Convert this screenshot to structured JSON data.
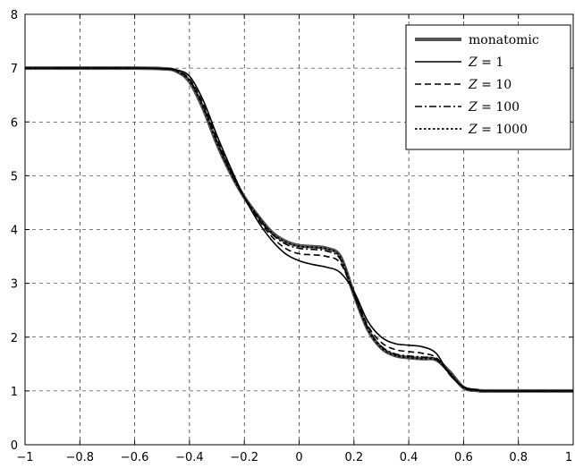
{
  "chart_data": {
    "type": "line",
    "title": "",
    "xlabel": "",
    "ylabel": "",
    "xlim": [
      -1,
      1
    ],
    "ylim": [
      0,
      8
    ],
    "xticks": [
      "−1",
      "−0.8",
      "−0.6",
      "−0.4",
      "−0.2",
      "0",
      "0.2",
      "0.4",
      "0.6",
      "0.8",
      "1"
    ],
    "yticks": [
      "0",
      "1",
      "2",
      "3",
      "4",
      "5",
      "6",
      "7",
      "8"
    ],
    "grid": true,
    "legend_position": "top-right",
    "series": [
      {
        "name": "monatomic",
        "color": "#555555",
        "style": "solid-thick",
        "points": [
          [
            -1,
            7
          ],
          [
            -0.6,
            7
          ],
          [
            -0.5,
            6.99
          ],
          [
            -0.45,
            6.95
          ],
          [
            -0.4,
            6.75
          ],
          [
            -0.35,
            6.25
          ],
          [
            -0.3,
            5.6
          ],
          [
            -0.25,
            5.05
          ],
          [
            -0.2,
            4.6
          ],
          [
            -0.15,
            4.25
          ],
          [
            -0.1,
            3.95
          ],
          [
            -0.05,
            3.78
          ],
          [
            0,
            3.7
          ],
          [
            0.05,
            3.68
          ],
          [
            0.1,
            3.65
          ],
          [
            0.15,
            3.5
          ],
          [
            0.2,
            2.8
          ],
          [
            0.25,
            2.15
          ],
          [
            0.3,
            1.8
          ],
          [
            0.35,
            1.66
          ],
          [
            0.4,
            1.62
          ],
          [
            0.45,
            1.6
          ],
          [
            0.5,
            1.58
          ],
          [
            0.55,
            1.35
          ],
          [
            0.6,
            1.06
          ],
          [
            0.65,
            1.01
          ],
          [
            0.7,
            1
          ],
          [
            1,
            1
          ]
        ]
      },
      {
        "name": "Z = 1",
        "label_math": "Z",
        "label_tail": " = 1",
        "color": "#000000",
        "style": "solid",
        "points": [
          [
            -1,
            7
          ],
          [
            -0.6,
            7
          ],
          [
            -0.5,
            6.99
          ],
          [
            -0.45,
            6.97
          ],
          [
            -0.4,
            6.85
          ],
          [
            -0.35,
            6.4
          ],
          [
            -0.3,
            5.75
          ],
          [
            -0.25,
            5.15
          ],
          [
            -0.2,
            4.6
          ],
          [
            -0.15,
            4.15
          ],
          [
            -0.1,
            3.8
          ],
          [
            -0.05,
            3.55
          ],
          [
            0,
            3.42
          ],
          [
            0.05,
            3.35
          ],
          [
            0.1,
            3.3
          ],
          [
            0.15,
            3.2
          ],
          [
            0.2,
            2.85
          ],
          [
            0.25,
            2.3
          ],
          [
            0.3,
            2.0
          ],
          [
            0.35,
            1.88
          ],
          [
            0.4,
            1.85
          ],
          [
            0.45,
            1.82
          ],
          [
            0.5,
            1.7
          ],
          [
            0.55,
            1.3
          ],
          [
            0.6,
            1.08
          ],
          [
            0.65,
            1.02
          ],
          [
            0.7,
            1
          ],
          [
            1,
            1
          ]
        ]
      },
      {
        "name": "Z = 10",
        "label_math": "Z",
        "label_tail": " = 10",
        "color": "#000000",
        "style": "dashed",
        "points": [
          [
            -1,
            7
          ],
          [
            -0.6,
            7
          ],
          [
            -0.5,
            6.99
          ],
          [
            -0.45,
            6.96
          ],
          [
            -0.4,
            6.8
          ],
          [
            -0.35,
            6.33
          ],
          [
            -0.3,
            5.68
          ],
          [
            -0.25,
            5.1
          ],
          [
            -0.2,
            4.6
          ],
          [
            -0.15,
            4.2
          ],
          [
            -0.1,
            3.87
          ],
          [
            -0.05,
            3.65
          ],
          [
            0,
            3.55
          ],
          [
            0.05,
            3.53
          ],
          [
            0.1,
            3.5
          ],
          [
            0.15,
            3.38
          ],
          [
            0.2,
            2.82
          ],
          [
            0.25,
            2.22
          ],
          [
            0.3,
            1.9
          ],
          [
            0.35,
            1.77
          ],
          [
            0.4,
            1.73
          ],
          [
            0.45,
            1.7
          ],
          [
            0.5,
            1.62
          ],
          [
            0.55,
            1.3
          ],
          [
            0.6,
            1.07
          ],
          [
            0.65,
            1.01
          ],
          [
            0.7,
            1
          ],
          [
            1,
            1
          ]
        ]
      },
      {
        "name": "Z = 100",
        "label_math": "Z",
        "label_tail": " = 100",
        "color": "#000000",
        "style": "dashdot",
        "points": [
          [
            -1,
            7
          ],
          [
            -0.6,
            7
          ],
          [
            -0.5,
            6.99
          ],
          [
            -0.45,
            6.96
          ],
          [
            -0.4,
            6.78
          ],
          [
            -0.35,
            6.29
          ],
          [
            -0.3,
            5.64
          ],
          [
            -0.25,
            5.07
          ],
          [
            -0.2,
            4.6
          ],
          [
            -0.15,
            4.23
          ],
          [
            -0.1,
            3.92
          ],
          [
            -0.05,
            3.73
          ],
          [
            0,
            3.65
          ],
          [
            0.05,
            3.63
          ],
          [
            0.1,
            3.6
          ],
          [
            0.15,
            3.45
          ],
          [
            0.2,
            2.8
          ],
          [
            0.25,
            2.17
          ],
          [
            0.3,
            1.83
          ],
          [
            0.35,
            1.69
          ],
          [
            0.4,
            1.65
          ],
          [
            0.45,
            1.63
          ],
          [
            0.5,
            1.59
          ],
          [
            0.55,
            1.33
          ],
          [
            0.6,
            1.06
          ],
          [
            0.65,
            1.01
          ],
          [
            0.7,
            1
          ],
          [
            1,
            1
          ]
        ]
      },
      {
        "name": "Z = 1000",
        "label_math": "Z",
        "label_tail": " = 1000",
        "color": "#000000",
        "style": "dotted",
        "points": [
          [
            -1,
            7
          ],
          [
            -0.6,
            7
          ],
          [
            -0.5,
            6.99
          ],
          [
            -0.45,
            6.95
          ],
          [
            -0.4,
            6.76
          ],
          [
            -0.35,
            6.26
          ],
          [
            -0.3,
            5.61
          ],
          [
            -0.25,
            5.05
          ],
          [
            -0.2,
            4.6
          ],
          [
            -0.15,
            4.25
          ],
          [
            -0.1,
            3.94
          ],
          [
            -0.05,
            3.77
          ],
          [
            0,
            3.69
          ],
          [
            0.05,
            3.67
          ],
          [
            0.1,
            3.64
          ],
          [
            0.15,
            3.49
          ],
          [
            0.2,
            2.8
          ],
          [
            0.25,
            2.15
          ],
          [
            0.3,
            1.8
          ],
          [
            0.35,
            1.66
          ],
          [
            0.4,
            1.62
          ],
          [
            0.45,
            1.6
          ],
          [
            0.5,
            1.58
          ],
          [
            0.55,
            1.34
          ],
          [
            0.6,
            1.06
          ],
          [
            0.65,
            1.01
          ],
          [
            0.7,
            1
          ],
          [
            1,
            1
          ]
        ]
      }
    ]
  }
}
